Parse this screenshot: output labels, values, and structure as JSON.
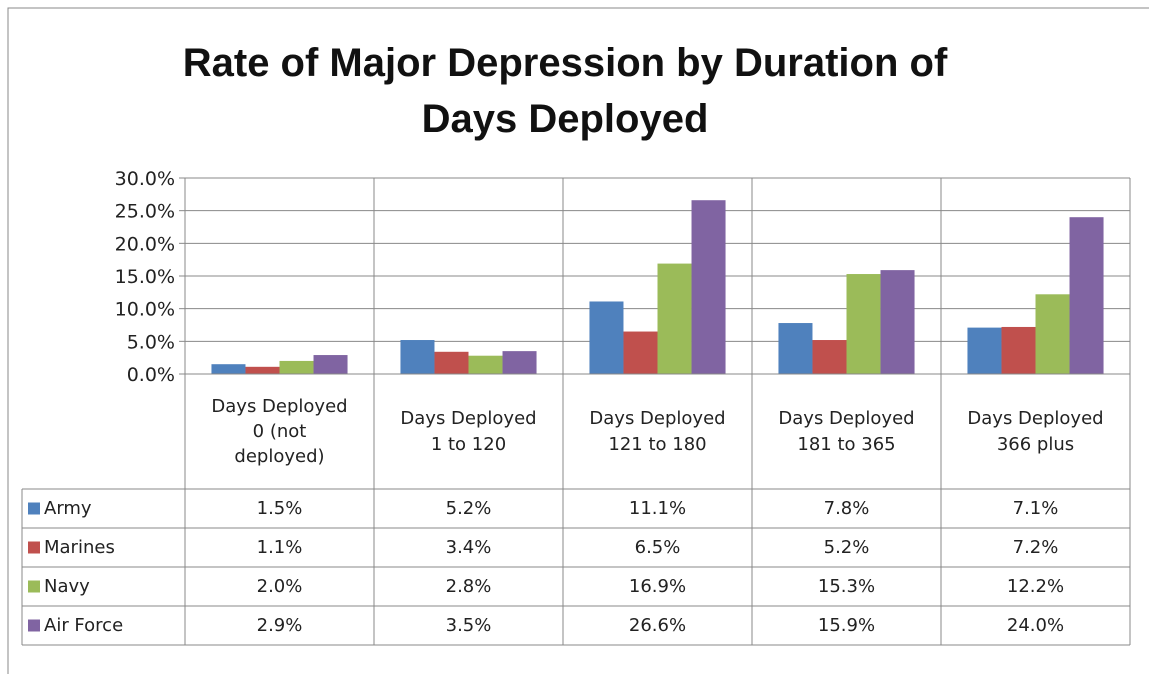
{
  "chart_data": {
    "type": "bar",
    "title": "Rate of Major Depression by Duration of Days Deployed",
    "categories": [
      "Days Deployed\n0 (not\ndeployed)",
      "Days Deployed\n1 to 120",
      "Days Deployed\n121 to 180",
      "Days Deployed\n181 to 365",
      "Days Deployed\n366 plus"
    ],
    "series": [
      {
        "name": "Army",
        "color": "#4f81bd",
        "values": [
          1.5,
          5.2,
          11.1,
          7.8,
          7.1
        ],
        "value_labels": [
          "1.5%",
          "5.2%",
          "11.1%",
          "7.8%",
          "7.1%"
        ]
      },
      {
        "name": "Marines",
        "color": "#c0504d",
        "values": [
          1.1,
          3.4,
          6.5,
          5.2,
          7.2
        ],
        "value_labels": [
          "1.1%",
          "3.4%",
          "6.5%",
          "5.2%",
          "7.2%"
        ]
      },
      {
        "name": "Navy",
        "color": "#9bbb59",
        "values": [
          2.0,
          2.8,
          16.9,
          15.3,
          12.2
        ],
        "value_labels": [
          "2.0%",
          "2.8%",
          "16.9%",
          "15.3%",
          "12.2%"
        ]
      },
      {
        "name": "Air Force",
        "color": "#8064a2",
        "values": [
          2.9,
          3.5,
          26.6,
          15.9,
          24.0
        ],
        "value_labels": [
          "2.9%",
          "3.5%",
          "26.6%",
          "15.9%",
          "24.0%"
        ]
      }
    ],
    "ylim": [
      0,
      30
    ],
    "yticks": [
      {
        "value": 0,
        "label": "0.0%"
      },
      {
        "value": 5,
        "label": "5.0%"
      },
      {
        "value": 10,
        "label": "10.0%"
      },
      {
        "value": 15,
        "label": "15.0%"
      },
      {
        "value": 20,
        "label": "20.0%"
      },
      {
        "value": 25,
        "label": "25.0%"
      },
      {
        "value": 30,
        "label": "30.0%"
      }
    ],
    "grid": true,
    "data_table": true
  }
}
